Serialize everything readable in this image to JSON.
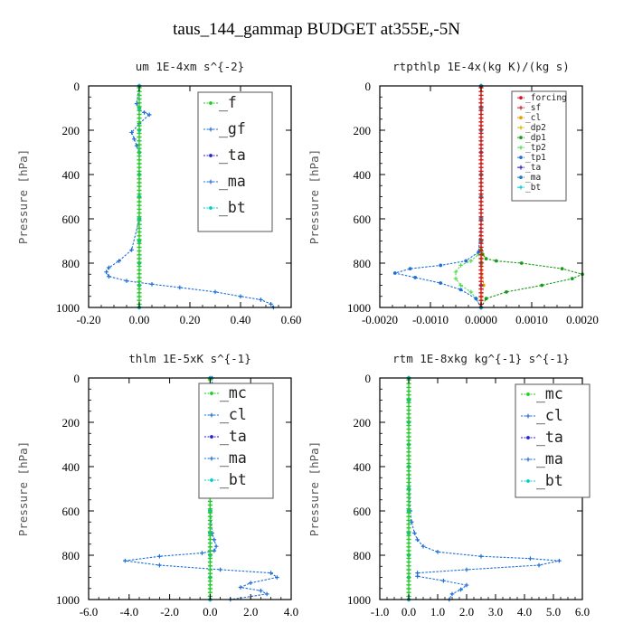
{
  "title": "taus_144_gammap  BUDGET at355E,-5N",
  "chart_data": [
    {
      "type": "line",
      "title": "um  1E-4xm s^{-2}",
      "ylabel": "Pressure [hPa]",
      "xlim": [
        -0.2,
        0.6
      ],
      "ylim": [
        1000,
        0
      ],
      "xticks": [
        "-0.20",
        "0.00",
        "0.20",
        "0.40",
        "0.60"
      ],
      "yticks": [
        "0",
        "200",
        "400",
        "600",
        "800",
        "1000"
      ],
      "grid": false,
      "legend_placement": "top-right",
      "series": [
        {
          "name": "_f",
          "color": "#22cc22",
          "x": [
            0,
            0,
            0,
            0,
            0,
            0,
            0,
            0,
            0,
            0,
            0
          ],
          "y": [
            0,
            100,
            200,
            300,
            400,
            500,
            600,
            700,
            800,
            900,
            1000
          ]
        },
        {
          "name": "_gf",
          "color": "#1e6fd9",
          "x": [
            0.0,
            -0.01,
            0.0,
            0.02,
            0.04,
            0.0,
            -0.03,
            -0.02,
            -0.01,
            0.0,
            0.0,
            0.0,
            0.0,
            -0.03,
            -0.08,
            -0.12,
            -0.13,
            -0.12,
            -0.05,
            0.05,
            0.16,
            0.3,
            0.4,
            0.48,
            0.52,
            0.53
          ],
          "y": [
            0,
            80,
            110,
            120,
            130,
            170,
            210,
            240,
            270,
            300,
            400,
            500,
            600,
            740,
            790,
            820,
            840,
            860,
            880,
            895,
            910,
            930,
            950,
            965,
            985,
            1000
          ]
        },
        {
          "name": "_ta",
          "color": "#2222cc",
          "x": [
            0,
            0,
            0,
            0,
            0,
            0,
            0,
            0,
            0,
            0,
            0
          ],
          "y": [
            0,
            100,
            200,
            300,
            400,
            500,
            600,
            700,
            800,
            900,
            1000
          ]
        },
        {
          "name": "_ma",
          "color": "#1e6fd9",
          "x": [
            0,
            0,
            0,
            0,
            0,
            0,
            0,
            0,
            0,
            0,
            0
          ],
          "y": [
            0,
            100,
            200,
            300,
            400,
            500,
            600,
            700,
            800,
            900,
            1000
          ]
        },
        {
          "name": "_bt",
          "color": "#00cccc",
          "x": [
            0,
            0,
            0,
            0,
            0,
            0,
            0,
            0,
            0,
            0,
            0
          ],
          "y": [
            0,
            100,
            200,
            300,
            400,
            500,
            600,
            700,
            800,
            900,
            1000
          ]
        }
      ]
    },
    {
      "type": "line",
      "title": "rtpthlp  1E-4x(kg K)/(kg s)",
      "ylabel": "Pressure [hPa]",
      "xlim": [
        -0.002,
        0.002
      ],
      "ylim": [
        1000,
        0
      ],
      "xticks": [
        "-0.0020",
        "-0.0010",
        "0.0000",
        "0.0010",
        "0.0020"
      ],
      "yticks": [
        "0",
        "200",
        "400",
        "600",
        "800",
        "1000"
      ],
      "grid": false,
      "legend_placement": "top-right",
      "series": [
        {
          "name": "_forcing",
          "color": "#dd1111",
          "x": [
            0,
            0,
            0,
            0,
            0,
            0,
            0,
            0,
            0,
            0,
            0
          ],
          "y": [
            0,
            100,
            200,
            300,
            400,
            500,
            600,
            700,
            800,
            900,
            1000
          ]
        },
        {
          "name": "_sf",
          "color": "#cc2222",
          "x": [
            0,
            0,
            0,
            0,
            0,
            0,
            0,
            0,
            0,
            0,
            0
          ],
          "y": [
            0,
            100,
            200,
            300,
            400,
            500,
            600,
            700,
            800,
            900,
            1000
          ]
        },
        {
          "name": "_cl",
          "color": "#ee9900",
          "x": [
            0,
            0,
            0,
            0,
            0,
            0,
            0,
            0,
            0,
            5e-05,
            0
          ],
          "y": [
            0,
            100,
            200,
            300,
            400,
            500,
            600,
            700,
            800,
            900,
            1000
          ]
        },
        {
          "name": "_dp2",
          "color": "#ddbb00",
          "x": [
            0,
            0,
            0,
            0,
            0,
            0,
            0,
            0,
            2e-05,
            0,
            0
          ],
          "y": [
            0,
            100,
            200,
            300,
            400,
            500,
            600,
            700,
            800,
            900,
            1000
          ]
        },
        {
          "name": "_dp1",
          "color": "#1a9a1a",
          "x": [
            0,
            0,
            0,
            0,
            0,
            0,
            3e-05,
            0.0001,
            0.0003,
            0.0008,
            0.0016,
            0.002,
            0.0018,
            0.0012,
            0.0005,
            0.0001,
            0
          ],
          "y": [
            0,
            200,
            400,
            600,
            700,
            740,
            760,
            780,
            790,
            800,
            825,
            850,
            870,
            900,
            930,
            960,
            1000
          ]
        },
        {
          "name": "_tp2",
          "color": "#55dd55",
          "x": [
            0,
            0,
            0,
            0,
            -5e-05,
            -0.0002,
            -0.0004,
            -0.0005,
            -0.0005,
            -0.0004,
            -0.0002,
            -0.0001,
            0
          ],
          "y": [
            0,
            200,
            400,
            600,
            760,
            790,
            810,
            840,
            870,
            900,
            930,
            960,
            1000
          ]
        },
        {
          "name": "_tp1",
          "color": "#1e6fd9",
          "x": [
            0,
            0,
            0,
            0,
            0,
            0,
            0,
            0,
            0,
            0,
            0
          ],
          "y": [
            0,
            100,
            200,
            300,
            400,
            500,
            600,
            700,
            800,
            900,
            1000
          ]
        },
        {
          "name": "_ta",
          "color": "#2222cc",
          "x": [
            0,
            0,
            0,
            0,
            0,
            0,
            0,
            0,
            0,
            0,
            0
          ],
          "y": [
            0,
            100,
            200,
            300,
            400,
            500,
            600,
            700,
            800,
            900,
            1000
          ]
        },
        {
          "name": "_ma",
          "color": "#1e6fd9",
          "x": [
            0,
            0,
            0,
            0,
            -5e-05,
            -0.0003,
            -0.0008,
            -0.0014,
            -0.0017,
            -0.0013,
            -0.0008,
            -0.0004,
            -0.0001,
            0
          ],
          "y": [
            0,
            200,
            400,
            600,
            750,
            790,
            810,
            825,
            845,
            865,
            890,
            920,
            960,
            1000
          ]
        },
        {
          "name": "_bt",
          "color": "#00cccc",
          "x": [
            0,
            0,
            0,
            0,
            0,
            0,
            0,
            0,
            0,
            0,
            0
          ],
          "y": [
            0,
            100,
            200,
            300,
            400,
            500,
            600,
            700,
            800,
            900,
            1000
          ]
        }
      ]
    },
    {
      "type": "line",
      "title": "thlm  1E-5xK s^{-1}",
      "ylabel": "Pressure [hPa]",
      "xlim": [
        -6.0,
        4.0
      ],
      "ylim": [
        1000,
        0
      ],
      "xticks": [
        "-6.0",
        "-4.0",
        "-2.0",
        "0.0",
        "2.0",
        "4.0"
      ],
      "yticks": [
        "0",
        "200",
        "400",
        "600",
        "800",
        "1000"
      ],
      "grid": false,
      "legend_placement": "top-right",
      "series": [
        {
          "name": "_mc",
          "color": "#22cc22",
          "x": [
            0,
            0,
            0,
            0,
            0,
            0,
            0,
            0,
            0,
            0,
            0
          ],
          "y": [
            0,
            100,
            200,
            300,
            400,
            500,
            600,
            700,
            800,
            900,
            1000
          ]
        },
        {
          "name": "_cl",
          "color": "#1e6fd9",
          "x": [
            0.1,
            0.1,
            0.2,
            0.1,
            -0.1,
            0.0,
            0.1,
            0.0,
            0.0,
            0.1,
            0.2,
            0.3,
            0.2,
            -0.4,
            -2.5,
            -4.2,
            -2.5,
            0.5,
            3.0,
            3.3,
            2.0,
            1.5,
            2.5,
            2.8,
            1.0
          ],
          "y": [
            0,
            80,
            110,
            130,
            160,
            200,
            300,
            400,
            600,
            700,
            730,
            760,
            780,
            790,
            805,
            825,
            845,
            865,
            880,
            900,
            925,
            945,
            960,
            975,
            1000
          ]
        },
        {
          "name": "_ta",
          "color": "#2222cc",
          "x": [
            0,
            0,
            0,
            0,
            0,
            0,
            0,
            0,
            0,
            0,
            0
          ],
          "y": [
            0,
            100,
            200,
            300,
            400,
            500,
            600,
            700,
            800,
            900,
            1000
          ]
        },
        {
          "name": "_ma",
          "color": "#1e6fd9",
          "x": [
            0,
            0,
            0,
            0,
            0,
            0,
            0,
            0,
            0,
            0,
            0
          ],
          "y": [
            0,
            100,
            200,
            300,
            400,
            500,
            600,
            700,
            800,
            900,
            1000
          ]
        },
        {
          "name": "_bt",
          "color": "#00cccc",
          "x": [
            0,
            0,
            0,
            0,
            0,
            0,
            0,
            0,
            0,
            0,
            0
          ],
          "y": [
            0,
            100,
            200,
            300,
            400,
            500,
            600,
            700,
            800,
            900,
            1000
          ]
        }
      ]
    },
    {
      "type": "line",
      "title": "rtm  1E-8xkg kg^{-1} s^{-1}",
      "ylabel": "Pressure [hPa]",
      "xlim": [
        -1.0,
        6.0
      ],
      "ylim": [
        1000,
        0
      ],
      "xticks": [
        "-1.0",
        "0.0",
        "1.0",
        "2.0",
        "3.0",
        "4.0",
        "5.0",
        "6.0"
      ],
      "yticks": [
        "0",
        "200",
        "400",
        "600",
        "800",
        "1000"
      ],
      "grid": false,
      "legend_placement": "top-right",
      "series": [
        {
          "name": "_mc",
          "color": "#22cc22",
          "x": [
            0,
            0,
            0,
            0,
            0,
            0,
            0,
            0,
            0,
            0,
            0
          ],
          "y": [
            0,
            100,
            200,
            300,
            400,
            500,
            600,
            700,
            800,
            900,
            1000
          ]
        },
        {
          "name": "_cl",
          "color": "#1e6fd9",
          "x": [
            0.0,
            0.0,
            0.0,
            0.0,
            0.05,
            0.1,
            0.2,
            0.3,
            0.5,
            1.0,
            2.5,
            4.2,
            5.2,
            4.5,
            2.0,
            0.3,
            0.3,
            1.2,
            2.0,
            1.8,
            1.5,
            1.4
          ],
          "y": [
            0,
            100,
            200,
            400,
            600,
            650,
            700,
            730,
            760,
            785,
            805,
            815,
            825,
            845,
            865,
            880,
            895,
            915,
            935,
            955,
            975,
            1000
          ]
        },
        {
          "name": "_ta",
          "color": "#2222cc",
          "x": [
            0,
            0,
            0,
            0,
            0,
            0,
            0,
            0,
            0,
            0,
            0
          ],
          "y": [
            0,
            100,
            200,
            300,
            400,
            500,
            600,
            700,
            800,
            900,
            1000
          ]
        },
        {
          "name": "_ma",
          "color": "#1e6fd9",
          "x": [
            0,
            0,
            0,
            0,
            0,
            0,
            0,
            0,
            0,
            0,
            0
          ],
          "y": [
            0,
            100,
            200,
            300,
            400,
            500,
            600,
            700,
            800,
            900,
            1000
          ]
        },
        {
          "name": "_bt",
          "color": "#00cccc",
          "x": [
            0,
            0,
            0,
            0,
            0,
            0,
            0,
            0,
            0,
            0,
            0
          ],
          "y": [
            0,
            100,
            200,
            300,
            400,
            500,
            600,
            700,
            800,
            900,
            1000
          ]
        }
      ]
    }
  ]
}
